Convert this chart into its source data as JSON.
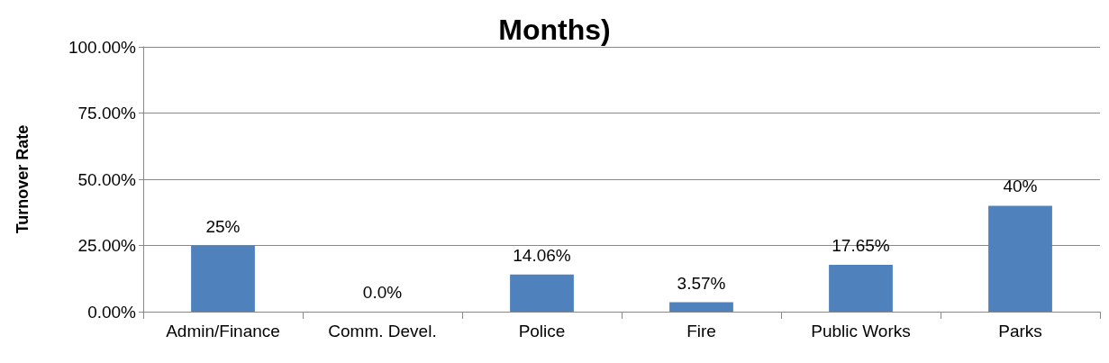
{
  "chart_data": {
    "type": "bar",
    "title": "Months)",
    "ylabel": "Turnover Rate",
    "categories": [
      "Admin/Finance",
      "Comm. Devel.",
      "Police",
      "Fire",
      "Public Works",
      "Parks"
    ],
    "values": [
      25,
      0,
      14.06,
      3.57,
      17.65,
      40
    ],
    "value_labels": [
      "25%",
      "0.0%",
      "14.06%",
      "3.57%",
      "17.65%",
      "40%"
    ],
    "color": "#4f81bd",
    "ylim": [
      0,
      100
    ],
    "yticks": [
      {
        "value": 0,
        "label": "0.00%"
      },
      {
        "value": 25,
        "label": "25.00%"
      },
      {
        "value": 50,
        "label": "50.00%"
      },
      {
        "value": 75,
        "label": "75.00%"
      },
      {
        "value": 100,
        "label": "100.00%"
      }
    ],
    "grid": "y"
  }
}
